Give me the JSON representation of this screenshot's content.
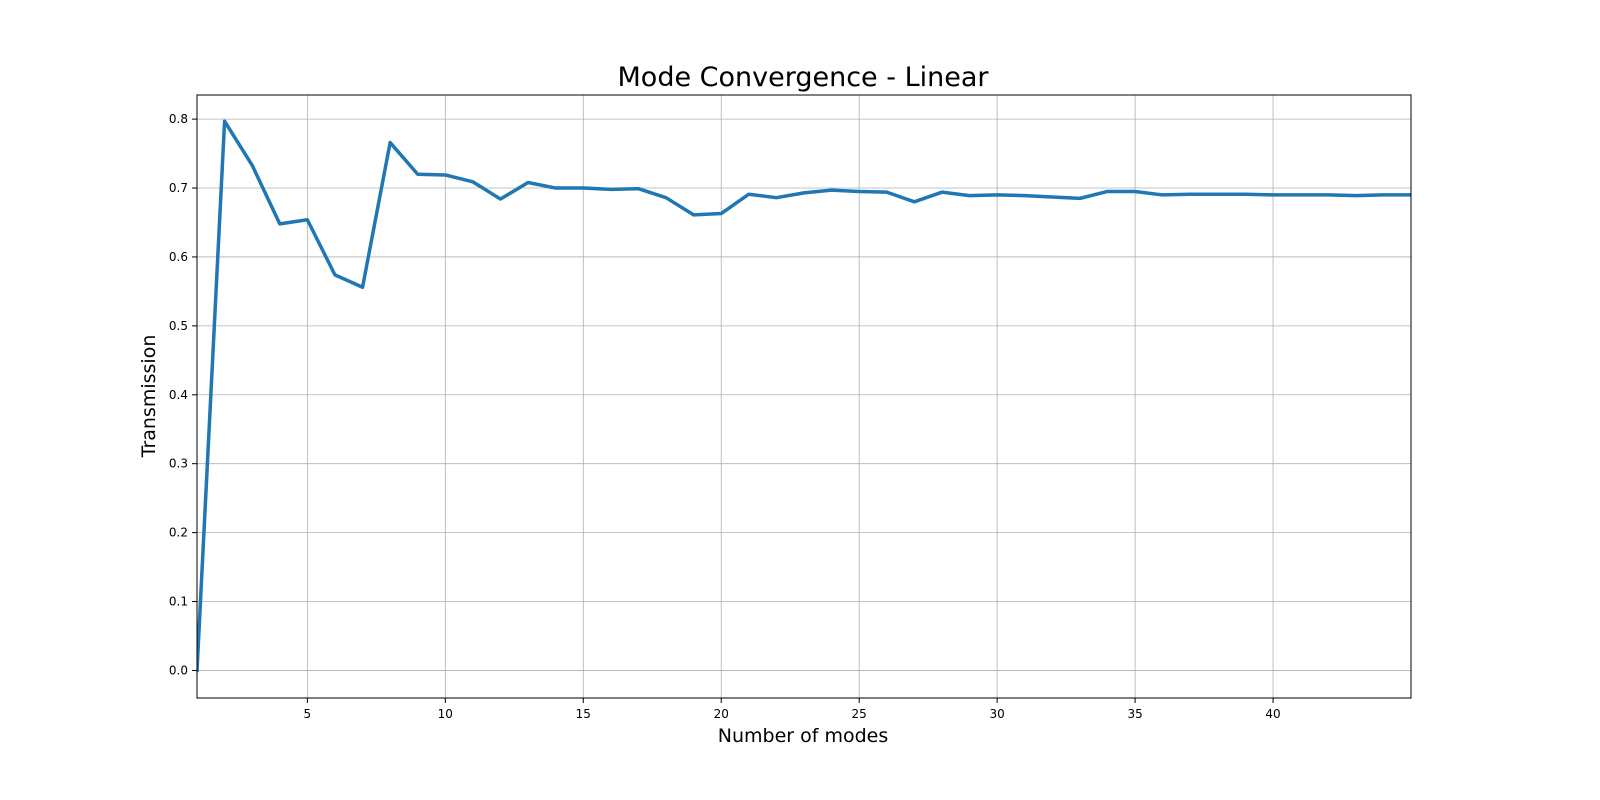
{
  "chart_data": {
    "type": "line",
    "title": "Mode Convergence - Linear",
    "xlabel": "Number of modes",
    "ylabel": "Transmission",
    "xlim": [
      1,
      45
    ],
    "ylim": [
      -0.04,
      0.835
    ],
    "x_ticks": [
      5,
      10,
      15,
      20,
      25,
      30,
      35,
      40
    ],
    "y_ticks": [
      0.0,
      0.1,
      0.2,
      0.3,
      0.4,
      0.5,
      0.6,
      0.7,
      0.8
    ],
    "x_tick_labels": [
      "5",
      "10",
      "15",
      "20",
      "25",
      "30",
      "35",
      "40"
    ],
    "y_tick_labels": [
      "0.0",
      "0.1",
      "0.2",
      "0.3",
      "0.4",
      "0.5",
      "0.6",
      "0.7",
      "0.8"
    ],
    "grid": true,
    "legend": "none",
    "line_color": "#1f77b4",
    "series": [
      {
        "x": [
          1,
          2,
          3,
          4,
          5,
          6,
          7,
          8,
          9,
          10,
          11,
          12,
          13,
          14,
          15,
          16,
          17,
          18,
          19,
          20,
          21,
          22,
          23,
          24,
          25,
          26,
          27,
          28,
          29,
          30,
          31,
          32,
          33,
          34,
          35,
          36,
          37,
          38,
          39,
          40,
          41,
          42,
          43,
          44,
          45
        ],
        "values": [
          0.0,
          0.797,
          0.733,
          0.648,
          0.654,
          0.574,
          0.556,
          0.766,
          0.72,
          0.719,
          0.709,
          0.684,
          0.708,
          0.7,
          0.7,
          0.698,
          0.699,
          0.686,
          0.661,
          0.663,
          0.691,
          0.686,
          0.693,
          0.697,
          0.695,
          0.694,
          0.68,
          0.694,
          0.689,
          0.69,
          0.689,
          0.687,
          0.685,
          0.695,
          0.695,
          0.69,
          0.691,
          0.691,
          0.691,
          0.69,
          0.69,
          0.69,
          0.689,
          0.69,
          0.69
        ]
      }
    ]
  }
}
